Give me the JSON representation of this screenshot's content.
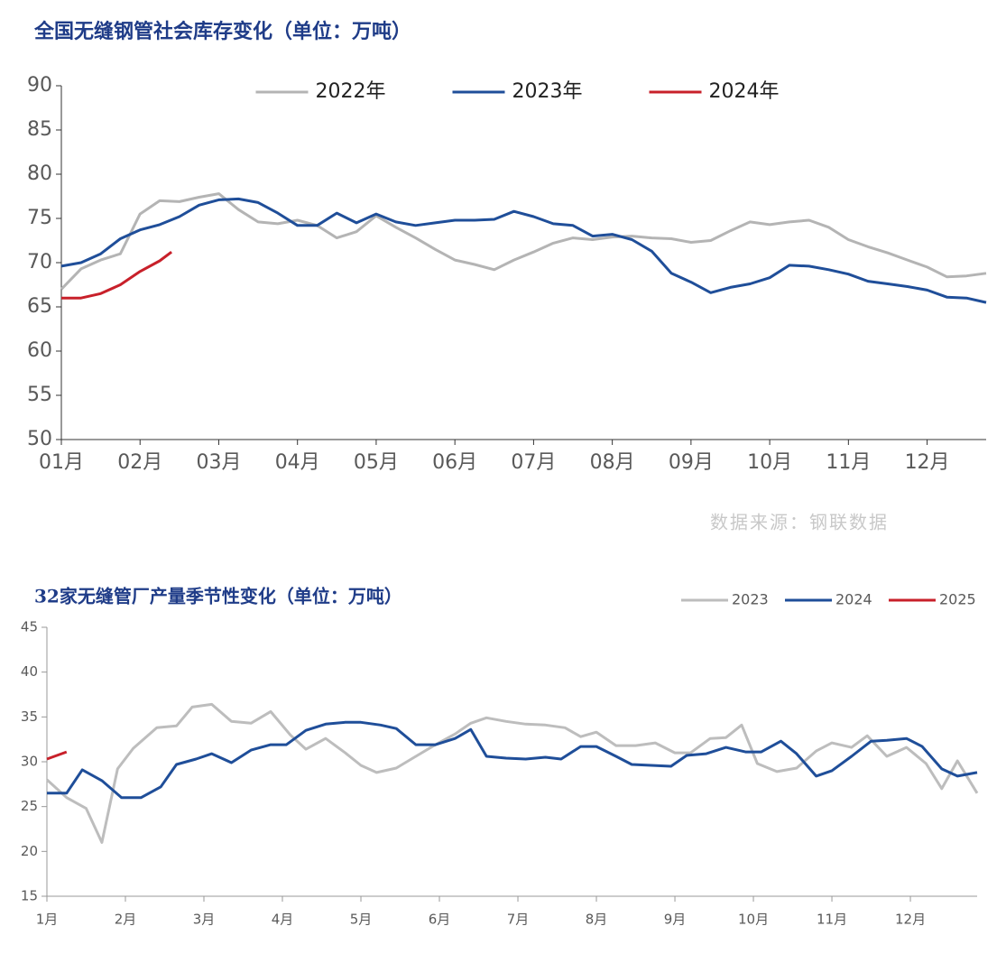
{
  "chart_data": [
    {
      "type": "line",
      "title": "全国无缝钢管社会库存变化（单位：万吨）",
      "source": "数据来源：钢联数据",
      "legend": "upper center",
      "xlim": [
        1,
        12.75
      ],
      "xticks": [
        {
          "value": 1,
          "label": "01月"
        },
        {
          "value": 2,
          "label": "02月"
        },
        {
          "value": 3,
          "label": "03月"
        },
        {
          "value": 4,
          "label": "04月"
        },
        {
          "value": 5,
          "label": "05月"
        },
        {
          "value": 6,
          "label": "06月"
        },
        {
          "value": 7,
          "label": "07月"
        },
        {
          "value": 8,
          "label": "08月"
        },
        {
          "value": 9,
          "label": "09月"
        },
        {
          "value": 10,
          "label": "10月"
        },
        {
          "value": 11,
          "label": "11月"
        },
        {
          "value": 12,
          "label": "12月"
        }
      ],
      "ylim": [
        50,
        90
      ],
      "yticks": [
        50,
        55,
        60,
        65,
        70,
        75,
        80,
        85,
        90
      ],
      "series": [
        {
          "name": "2022年",
          "color": "#b4b4b4",
          "x": [
            1,
            1.25,
            1.5,
            1.75,
            2,
            2.25,
            2.5,
            2.75,
            3,
            3.25,
            3.5,
            3.75,
            4,
            4.25,
            4.5,
            4.75,
            5,
            5.25,
            5.5,
            5.75,
            6,
            6.25,
            6.5,
            6.75,
            7,
            7.25,
            7.5,
            7.75,
            8,
            8.25,
            8.5,
            8.75,
            9,
            9.25,
            9.5,
            9.75,
            10,
            10.25,
            10.5,
            10.75,
            11,
            11.25,
            11.5,
            11.75,
            12,
            12.25,
            12.5,
            12.75
          ],
          "values": [
            67.0,
            69.3,
            70.3,
            71.0,
            75.5,
            77.0,
            76.9,
            77.4,
            77.8,
            76.0,
            74.6,
            74.4,
            74.8,
            74.2,
            72.8,
            73.5,
            75.3,
            74.0,
            72.8,
            71.5,
            70.3,
            69.8,
            69.2,
            70.3,
            71.2,
            72.2,
            72.8,
            72.6,
            72.9,
            73.0,
            72.8,
            72.7,
            72.3,
            72.5,
            73.6,
            74.6,
            74.3,
            74.6,
            74.8,
            74.0,
            72.6,
            71.8,
            71.1,
            70.3,
            69.5,
            68.4,
            68.5,
            68.8
          ]
        },
        {
          "name": "2023年",
          "color": "#1f4e99",
          "x": [
            1,
            1.25,
            1.5,
            1.75,
            2,
            2.25,
            2.5,
            2.75,
            3,
            3.25,
            3.5,
            3.75,
            4,
            4.25,
            4.5,
            4.75,
            5,
            5.25,
            5.5,
            5.75,
            6,
            6.25,
            6.5,
            6.75,
            7,
            7.25,
            7.5,
            7.75,
            8,
            8.25,
            8.5,
            8.75,
            9,
            9.25,
            9.5,
            9.75,
            10,
            10.25,
            10.5,
            10.75,
            11,
            11.25,
            11.5,
            11.75,
            12,
            12.25,
            12.5,
            12.75
          ],
          "values": [
            69.6,
            70.0,
            71.0,
            72.7,
            73.7,
            74.3,
            75.2,
            76.5,
            77.1,
            77.2,
            76.8,
            75.6,
            74.2,
            74.2,
            75.6,
            74.5,
            75.5,
            74.6,
            74.2,
            74.5,
            74.8,
            74.8,
            74.9,
            75.8,
            75.2,
            74.4,
            74.2,
            73.0,
            73.2,
            72.6,
            71.3,
            68.8,
            67.8,
            66.6,
            67.2,
            67.6,
            68.3,
            69.7,
            69.6,
            69.2,
            68.7,
            67.9,
            67.6,
            67.3,
            66.9,
            66.1,
            66.0,
            65.5
          ]
        },
        {
          "name": "2024年",
          "color": "#c8202a",
          "x": [
            1,
            1.25,
            1.5,
            1.75,
            2,
            2.25,
            2.4
          ],
          "values": [
            66.0,
            66.0,
            66.5,
            67.5,
            69.0,
            70.2,
            71.2
          ]
        }
      ]
    },
    {
      "type": "line",
      "title": "32家无缝管厂产量季节性变化（单位：万吨）",
      "legend": "upper right",
      "xlim": [
        1,
        12.85
      ],
      "xticks": [
        {
          "value": 1,
          "label": "1月"
        },
        {
          "value": 2,
          "label": "2月"
        },
        {
          "value": 3,
          "label": "3月"
        },
        {
          "value": 4,
          "label": "4月"
        },
        {
          "value": 5,
          "label": "5月"
        },
        {
          "value": 6,
          "label": "6月"
        },
        {
          "value": 7,
          "label": "7月"
        },
        {
          "value": 8,
          "label": "8月"
        },
        {
          "value": 9,
          "label": "9月"
        },
        {
          "value": 10,
          "label": "10月"
        },
        {
          "value": 11,
          "label": "11月"
        },
        {
          "value": 12,
          "label": "12月"
        }
      ],
      "ylim": [
        15,
        45
      ],
      "yticks": [
        15,
        20,
        25,
        30,
        35,
        40,
        45
      ],
      "series": [
        {
          "name": "2023",
          "color": "#bdbdbd",
          "x": [
            1,
            1.25,
            1.5,
            1.7,
            1.9,
            2.1,
            2.4,
            2.65,
            2.85,
            3.1,
            3.35,
            3.6,
            3.85,
            4.1,
            4.3,
            4.55,
            4.8,
            5,
            5.2,
            5.45,
            5.7,
            5.95,
            6.2,
            6.4,
            6.6,
            6.85,
            7.1,
            7.35,
            7.6,
            7.8,
            8,
            8.25,
            8.5,
            8.75,
            9,
            9.2,
            9.45,
            9.65,
            9.85,
            10.05,
            10.3,
            10.55,
            10.8,
            11,
            11.25,
            11.45,
            11.7,
            11.95,
            12.2,
            12.4,
            12.6,
            12.85
          ],
          "values": [
            28.0,
            26.0,
            24.8,
            21.0,
            29.2,
            31.5,
            33.8,
            34.0,
            36.1,
            36.4,
            34.5,
            34.3,
            35.6,
            33.0,
            31.4,
            32.6,
            31.0,
            29.6,
            28.8,
            29.3,
            30.6,
            31.9,
            33.1,
            34.3,
            34.9,
            34.5,
            34.2,
            34.1,
            33.8,
            32.8,
            33.3,
            31.8,
            31.8,
            32.1,
            31.0,
            31.0,
            32.6,
            32.7,
            34.1,
            29.8,
            28.9,
            29.3,
            31.2,
            32.1,
            31.6,
            32.9,
            30.6,
            31.6,
            29.8,
            27.0,
            30.1,
            26.5
          ]
        },
        {
          "name": "2024",
          "color": "#1f4e99",
          "x": [
            1,
            1.25,
            1.45,
            1.7,
            1.95,
            2.2,
            2.45,
            2.65,
            2.9,
            3.1,
            3.35,
            3.6,
            3.85,
            4.05,
            4.3,
            4.55,
            4.8,
            5,
            5.25,
            5.45,
            5.7,
            5.95,
            6.2,
            6.4,
            6.6,
            6.85,
            7.1,
            7.35,
            7.55,
            7.8,
            8,
            8.25,
            8.45,
            8.7,
            8.95,
            9.15,
            9.4,
            9.65,
            9.9,
            10.1,
            10.35,
            10.55,
            10.8,
            11,
            11.25,
            11.5,
            11.7,
            11.95,
            12.15,
            12.4,
            12.6,
            12.85
          ],
          "values": [
            26.5,
            26.5,
            29.1,
            27.9,
            26.0,
            26.0,
            27.2,
            29.7,
            30.3,
            30.9,
            29.9,
            31.3,
            31.9,
            31.9,
            33.5,
            34.2,
            34.4,
            34.4,
            34.1,
            33.7,
            31.9,
            31.9,
            32.6,
            33.6,
            30.6,
            30.4,
            30.3,
            30.5,
            30.3,
            31.7,
            31.7,
            30.6,
            29.7,
            29.6,
            29.5,
            30.7,
            30.9,
            31.6,
            31.1,
            31.1,
            32.3,
            30.9,
            28.4,
            29.0,
            30.6,
            32.3,
            32.4,
            32.6,
            31.7,
            29.2,
            28.4,
            28.8
          ]
        },
        {
          "name": "2025",
          "color": "#c8202a",
          "x": [
            1,
            1.25
          ],
          "values": [
            30.3,
            31.1
          ]
        }
      ]
    }
  ]
}
